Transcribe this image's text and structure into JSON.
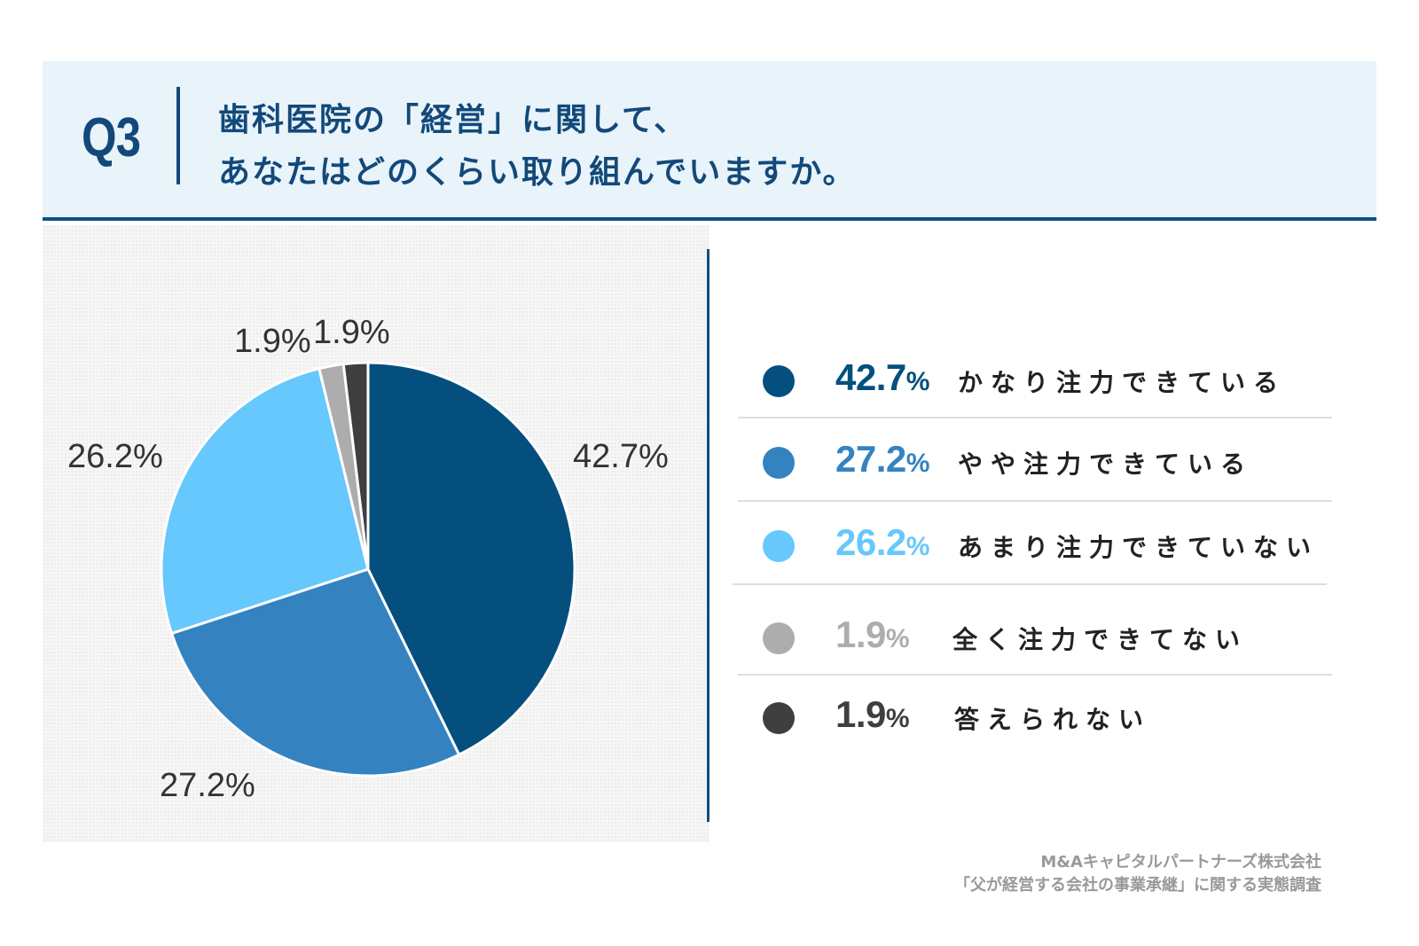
{
  "header": {
    "q_number": "Q3",
    "question_line1": "歯科医院の「経営」に関して、",
    "question_line2": "あなたはどのくらい取り組んでいますか。"
  },
  "chart_data": {
    "type": "pie",
    "title": "歯科医院の「経営」に関して、あなたはどのくらい取り組んでいますか。",
    "series": [
      {
        "label": "かなり注力できている",
        "value": 42.7,
        "value_text": "42.7",
        "pie_label": "42.7%",
        "color": "#044f7e"
      },
      {
        "label": "やや注力できている",
        "value": 27.2,
        "value_text": "27.2",
        "pie_label": "27.2%",
        "color": "#3483c0"
      },
      {
        "label": "あまり注力できていない",
        "value": 26.2,
        "value_text": "26.2",
        "pie_label": "26.2%",
        "color": "#66c8fc"
      },
      {
        "label": "全く注力できてない",
        "value": 1.9,
        "value_text": "1.9",
        "pie_label": "1.9%",
        "color": "#adadad"
      },
      {
        "label": "答えられない",
        "value": 1.9,
        "value_text": "1.9",
        "pie_label": "1.9%",
        "color": "#3f3f3f"
      }
    ],
    "legend_placement": "right",
    "unit": "%"
  },
  "colors": {
    "header_bg": "#e9f3fa",
    "accent": "#0d5082"
  },
  "source": {
    "line1": "M&Aキャピタルパートナーズ株式会社",
    "line2": "「父が経営する会社の事業承継」に関する実態調査"
  }
}
